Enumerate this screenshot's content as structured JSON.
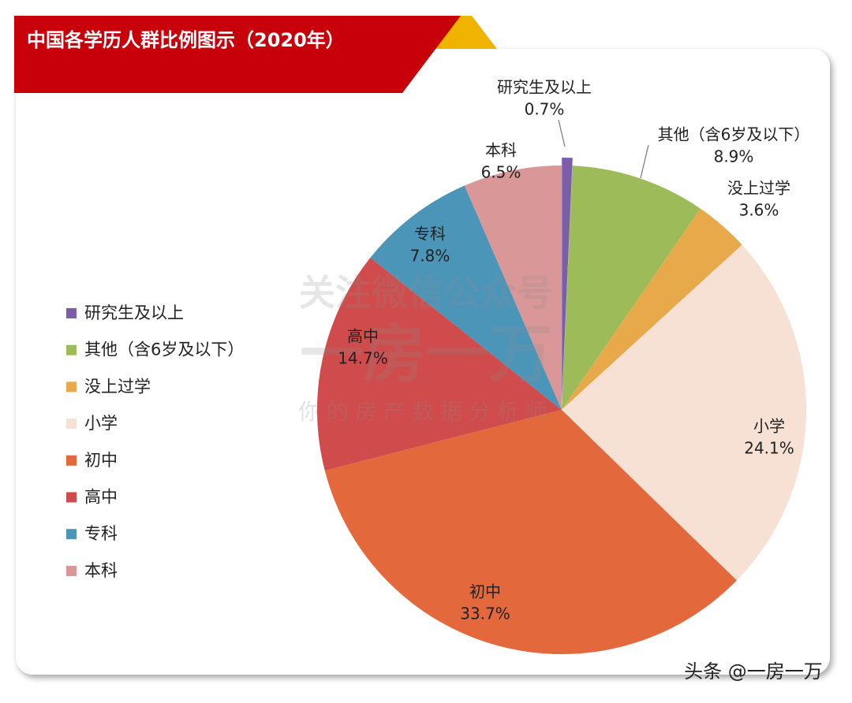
{
  "chart_data": {
    "type": "pie",
    "title": "中国各学历人群比例图示（2020年）",
    "categories": [
      "研究生及以上",
      "其他（含6岁及以下）",
      "没上过学",
      "小学",
      "初中",
      "高中",
      "专科",
      "本科"
    ],
    "values": [
      0.7,
      8.9,
      3.6,
      24.1,
      33.7,
      14.7,
      7.8,
      6.5
    ],
    "value_labels": [
      "0.7%",
      "8.9%",
      "3.6%",
      "24.1%",
      "33.7%",
      "14.7%",
      "7.8%",
      "6.5%"
    ],
    "colors": [
      "#7b5ea7",
      "#9dbb59",
      "#e8a94a",
      "#f6e1d4",
      "#e3693c",
      "#d04b4b",
      "#4b95b9",
      "#d99797"
    ],
    "legend": "left",
    "annotations": [
      "关注微信公众号",
      "一房一万",
      "你的房产数据分析师",
      "头条 @一房一万"
    ]
  }
}
